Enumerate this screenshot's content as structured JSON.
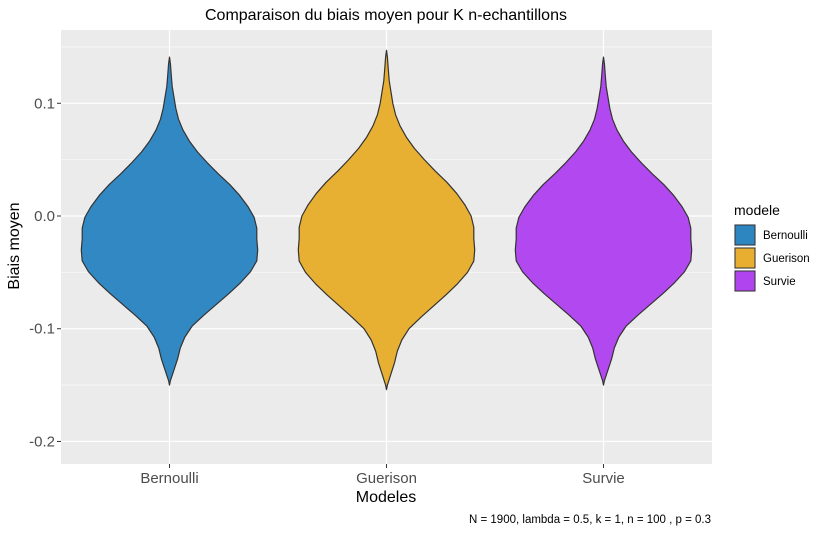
{
  "chart_data": {
    "type": "violin",
    "title": "Comparaison du biais moyen pour K n-echantillons",
    "xlabel": "Modeles",
    "ylabel": "Biais moyen",
    "caption": "N = 1900, lambda = 0.5, k = 1, n = 100 , p = 0.3",
    "categories": [
      "Bernoulli",
      "Guerison",
      "Survie"
    ],
    "ylim": [
      -0.22,
      0.165
    ],
    "yticks": [
      {
        "value": 0.1,
        "label": "0.1"
      },
      {
        "value": 0.0,
        "label": "0.0"
      },
      {
        "value": -0.1,
        "label": "-0.1"
      },
      {
        "value": -0.2,
        "label": "-0.2"
      }
    ],
    "grid": true,
    "legend": {
      "title": "modele",
      "position": "right",
      "entries": [
        "Bernoulli",
        "Guerison",
        "Survie"
      ]
    },
    "series": [
      {
        "name": "Bernoulli",
        "color": "#2e86c1",
        "min": -0.15,
        "max": 0.141
      },
      {
        "name": "Guerison",
        "color": "#e8ae2f",
        "min": -0.154,
        "max": 0.147
      },
      {
        "name": "Survie",
        "color": "#b044ef",
        "min": -0.15,
        "max": 0.141
      }
    ],
    "density_profile": {
      "y": [
        -0.154,
        -0.15,
        -0.145,
        -0.13,
        -0.12,
        -0.11,
        -0.1,
        -0.09,
        -0.08,
        -0.07,
        -0.06,
        -0.05,
        -0.04,
        -0.03,
        -0.02,
        -0.01,
        0.0,
        0.01,
        0.02,
        0.03,
        0.04,
        0.05,
        0.06,
        0.07,
        0.08,
        0.09,
        0.1,
        0.11,
        0.12,
        0.13,
        0.141,
        0.147
      ],
      "width": [
        0.0,
        0.01,
        0.03,
        0.09,
        0.12,
        0.17,
        0.25,
        0.38,
        0.52,
        0.66,
        0.79,
        0.9,
        0.97,
        0.98,
        0.97,
        0.97,
        0.94,
        0.87,
        0.78,
        0.67,
        0.54,
        0.42,
        0.31,
        0.22,
        0.15,
        0.1,
        0.07,
        0.05,
        0.03,
        0.02,
        0.01,
        0.0
      ]
    }
  }
}
